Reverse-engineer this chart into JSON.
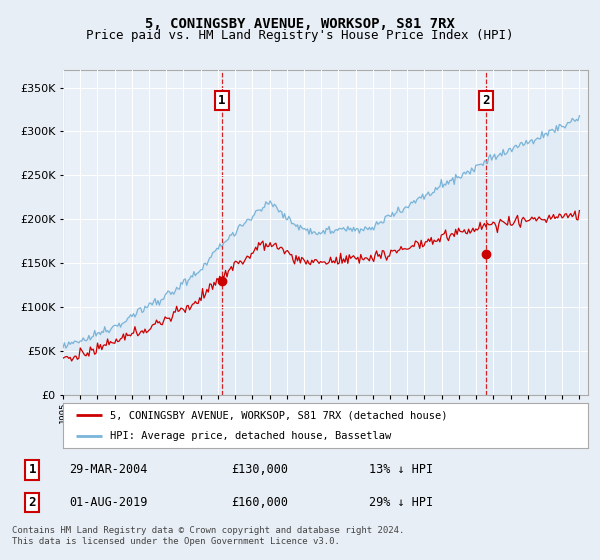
{
  "title": "5, CONINGSBY AVENUE, WORKSOP, S81 7RX",
  "subtitle": "Price paid vs. HM Land Registry's House Price Index (HPI)",
  "title_fontsize": 10,
  "subtitle_fontsize": 9,
  "ylim": [
    0,
    370000
  ],
  "ytick_values": [
    0,
    50000,
    100000,
    150000,
    200000,
    250000,
    300000,
    350000
  ],
  "hpi_color": "#7ab4d8",
  "hpi_fill_color": "#d0e4f0",
  "price_color": "#cc0000",
  "marker1_year": 2004.24,
  "marker1_price": 130000,
  "marker2_year": 2019.58,
  "marker2_price": 160000,
  "legend_entry1": "5, CONINGSBY AVENUE, WORKSOP, S81 7RX (detached house)",
  "legend_entry2": "HPI: Average price, detached house, Bassetlaw",
  "annotation1_date": "29-MAR-2004",
  "annotation1_price": "£130,000",
  "annotation1_hpi": "13% ↓ HPI",
  "annotation2_date": "01-AUG-2019",
  "annotation2_price": "£160,000",
  "annotation2_hpi": "29% ↓ HPI",
  "footer": "Contains HM Land Registry data © Crown copyright and database right 2024.\nThis data is licensed under the Open Government Licence v3.0.",
  "bg_color": "#e8eef5",
  "plot_bg": "#eaf0f8",
  "x_start_year": 1995,
  "x_end_year": 2025
}
